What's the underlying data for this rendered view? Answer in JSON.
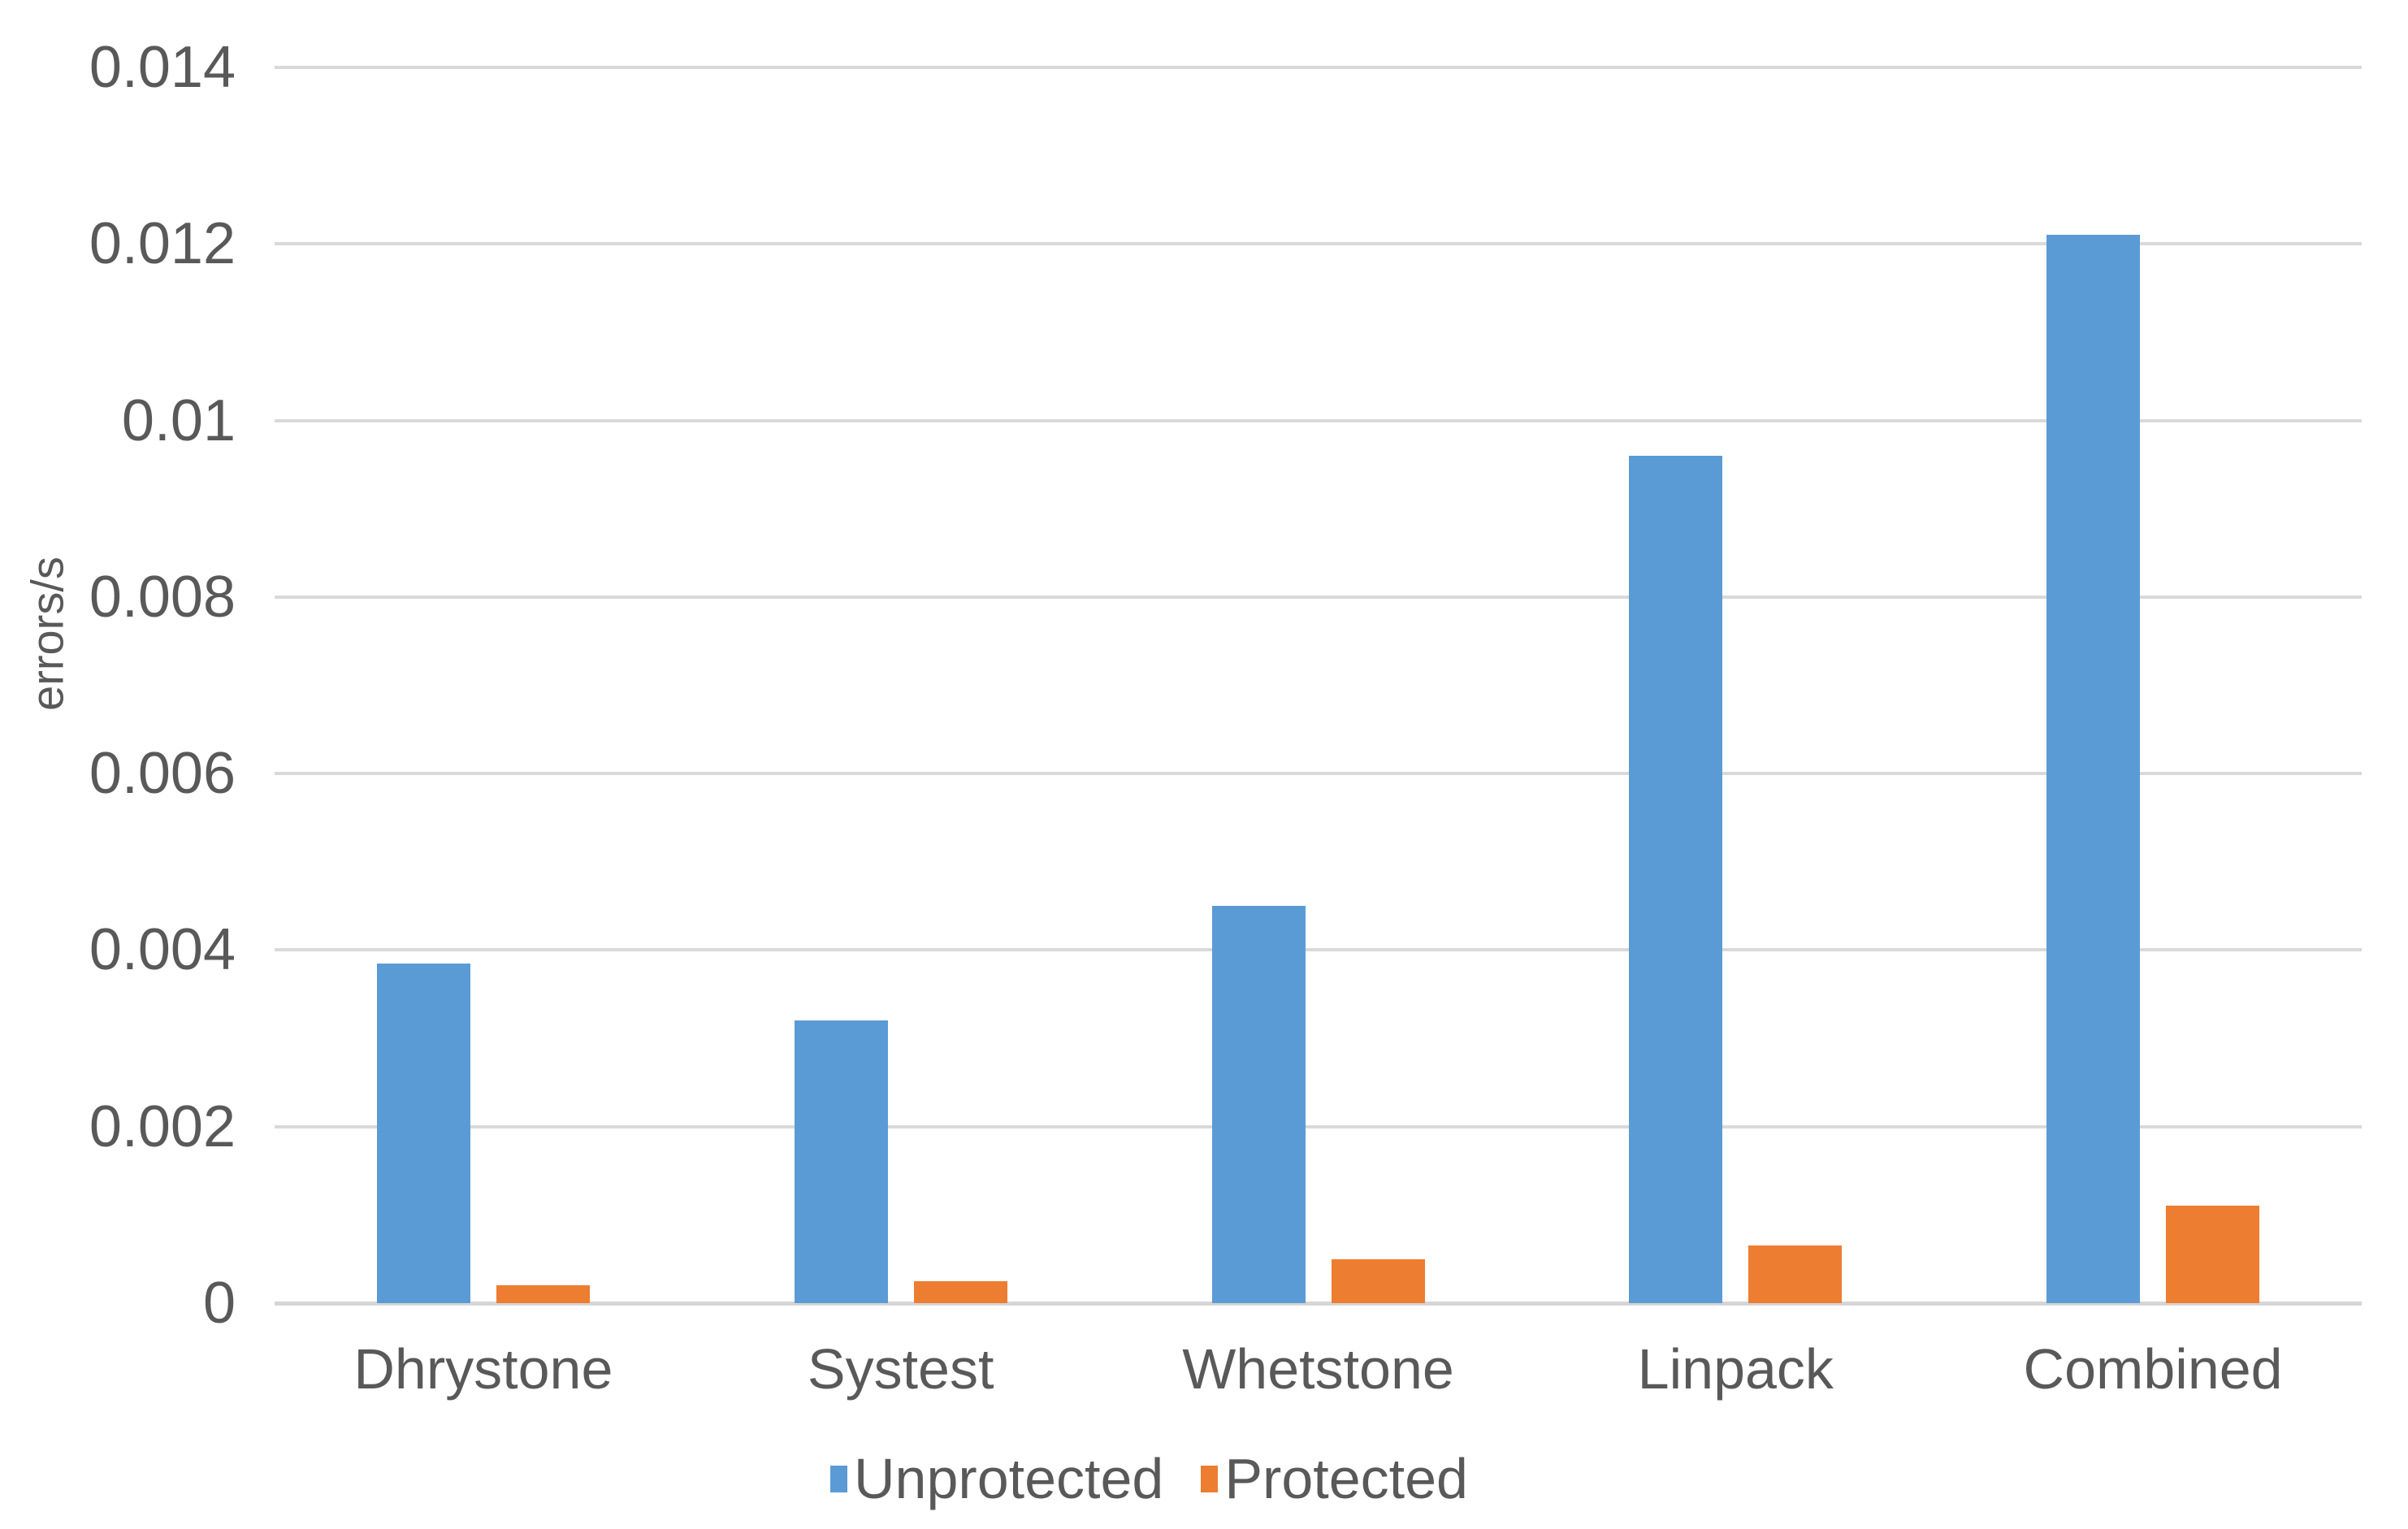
{
  "chart_data": {
    "type": "bar",
    "title": "",
    "xlabel": "",
    "ylabel": "errors/s",
    "categories": [
      "Dhrystone",
      "Systest",
      "Whetstone",
      "Linpack",
      "Combined"
    ],
    "series": [
      {
        "name": "Unprotected",
        "color": "#5B9BD5",
        "values": [
          0.00385,
          0.0032,
          0.0045,
          0.0096,
          0.0121
        ]
      },
      {
        "name": "Protected",
        "color": "#ED7D31",
        "values": [
          0.0002,
          0.00025,
          0.0005,
          0.00065,
          0.0011
        ]
      }
    ],
    "ylim": [
      0,
      0.014
    ],
    "ytick_step": 0.002,
    "ytick_labels": [
      "0",
      "0.002",
      "0.004",
      "0.006",
      "0.008",
      "0.01",
      "0.012",
      "0.014"
    ],
    "grid": "horizontal",
    "gridline_color": "#D9D9D9",
    "text_color": "#595959",
    "legend_position": "bottom"
  }
}
